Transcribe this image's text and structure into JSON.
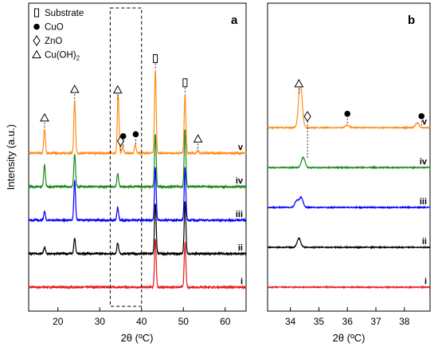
{
  "chart_data": [
    {
      "type": "line",
      "panel_label": "a",
      "xlabel": "2θ (ºC)",
      "ylabel": "Intensity (a.u.)",
      "xlim": [
        13,
        65
      ],
      "xticks": [
        20,
        30,
        40,
        50,
        60
      ],
      "xtick_labels": [
        "20",
        "30",
        "40",
        "50",
        "60"
      ],
      "y_ticks_shown": false,
      "grid": false,
      "legend": {
        "placement": "top-left",
        "entries": [
          {
            "marker": "open-rectangle",
            "label": "Substrate"
          },
          {
            "marker": "filled-circle",
            "label": "CuO"
          },
          {
            "marker": "open-diamond",
            "label": "ZnO"
          },
          {
            "marker": "open-triangle",
            "label": "Cu(OH)",
            "subscript": "2"
          }
        ]
      },
      "highlight_box": {
        "x_range": [
          32.5,
          40
        ],
        "style": "dashed"
      },
      "series": [
        {
          "name": "i",
          "color": "#e41a1c",
          "offset": 0,
          "peaks": [
            [
              43.3,
              1.1
            ],
            [
              50.4,
              1.02
            ]
          ]
        },
        {
          "name": "ii",
          "color": "#000000",
          "offset": 1,
          "peaks": [
            [
              16.8,
              0.15
            ],
            [
              24.0,
              0.35
            ],
            [
              34.3,
              0.25
            ],
            [
              43.3,
              1.15
            ],
            [
              50.4,
              1.2
            ]
          ]
        },
        {
          "name": "iii",
          "color": "#0000ff",
          "offset": 2,
          "peaks": [
            [
              16.8,
              0.2
            ],
            [
              24.0,
              0.9
            ],
            [
              34.3,
              0.3
            ],
            [
              43.3,
              1.2
            ],
            [
              50.4,
              1.2
            ]
          ]
        },
        {
          "name": "iv",
          "color": "#1a8a1a",
          "offset": 3,
          "peaks": [
            [
              16.8,
              0.5
            ],
            [
              24.0,
              0.75
            ],
            [
              34.3,
              0.3
            ],
            [
              43.3,
              1.2
            ],
            [
              50.4,
              1.3
            ]
          ]
        },
        {
          "name": "v",
          "color": "#ff8c1a",
          "offset": 4,
          "peaks": [
            [
              16.8,
              0.55
            ],
            [
              24.0,
              1.2
            ],
            [
              34.4,
              1.35
            ],
            [
              35.5,
              0.15
            ],
            [
              38.5,
              0.2
            ],
            [
              43.3,
              1.9
            ],
            [
              50.4,
              1.35
            ],
            [
              53.5,
              0.07
            ]
          ]
        }
      ],
      "annotations": [
        {
          "marker": "open-triangle",
          "x": 16.8
        },
        {
          "marker": "open-triangle",
          "x": 24.0
        },
        {
          "marker": "open-triangle",
          "x": 34.3
        },
        {
          "marker": "open-diamond",
          "x": 35.0
        },
        {
          "marker": "filled-circle",
          "x": 35.6
        },
        {
          "marker": "filled-circle",
          "x": 38.6
        },
        {
          "marker": "open-rectangle",
          "x": 43.3
        },
        {
          "marker": "open-rectangle",
          "x": 50.4
        },
        {
          "marker": "open-triangle",
          "x": 53.5
        }
      ]
    },
    {
      "type": "line",
      "panel_label": "b",
      "xlabel": "2θ (ºC)",
      "xlim": [
        33.2,
        38.9
      ],
      "xticks": [
        34,
        35,
        36,
        37,
        38
      ],
      "xtick_labels": [
        "34",
        "35",
        "36",
        "37",
        "38"
      ],
      "y_ticks_shown": false,
      "grid": false,
      "series": [
        {
          "name": "i",
          "color": "#e41a1c",
          "offset": 0,
          "peaks": []
        },
        {
          "name": "ii",
          "color": "#000000",
          "offset": 1,
          "peaks": [
            [
              34.3,
              0.4
            ]
          ]
        },
        {
          "name": "iii",
          "color": "#0000ff",
          "offset": 2,
          "peaks": [
            [
              34.22,
              0.3
            ],
            [
              34.38,
              0.45
            ]
          ]
        },
        {
          "name": "iv",
          "color": "#1a8a1a",
          "offset": 3,
          "peaks": [
            [
              34.45,
              0.45
            ]
          ]
        },
        {
          "name": "v",
          "color": "#ff8c1a",
          "offset": 4,
          "peaks": [
            [
              34.35,
              2.0
            ],
            [
              36.0,
              0.12
            ],
            [
              38.45,
              0.22
            ]
          ]
        }
      ],
      "annotations": [
        {
          "marker": "open-triangle",
          "x": 34.3
        },
        {
          "marker": "open-diamond",
          "x": 34.6
        },
        {
          "marker": "filled-circle",
          "x": 36.0
        },
        {
          "marker": "filled-circle",
          "x": 38.6
        }
      ]
    }
  ]
}
